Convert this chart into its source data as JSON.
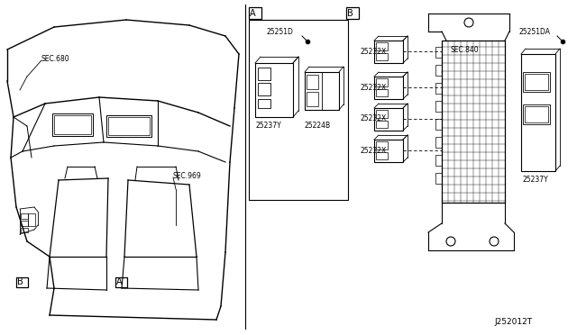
{
  "bg_color": "#ffffff",
  "line_color": "#000000",
  "diagram_id": "J252012T",
  "labels": {
    "sec_680": "SEC.680",
    "sec_969": "SEC.969",
    "sec_840": "SEC.840",
    "label_A_box": "A",
    "label_B_box": "B",
    "part_25251D": "25251D",
    "part_25237Y_left": "25237Y",
    "part_25224B": "25224B",
    "part_25232X": "25232X",
    "part_25251DA": "25251DA",
    "part_25237Y_right": "25237Y"
  },
  "font_size_small": 5.5,
  "font_size_box": 7,
  "font_size_part": 5.5,
  "font_size_id": 6.5
}
